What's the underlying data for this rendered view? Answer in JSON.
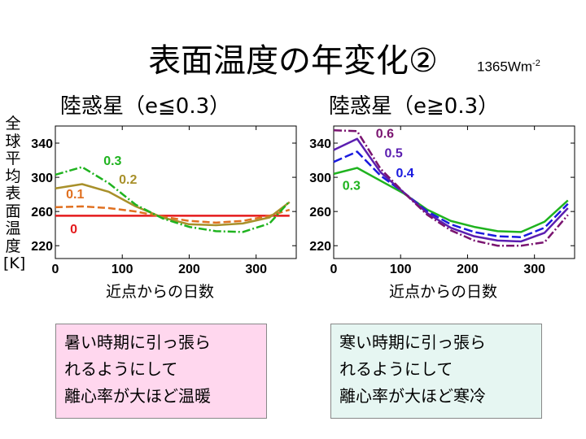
{
  "page": {
    "title": "表面温度の年変化②",
    "solar_constant": "1365Wm",
    "solar_constant_exp": "-2",
    "y_axis_label": "全球平均表面温度[K]"
  },
  "chart_data": [
    {
      "type": "line",
      "title": "陸惑星（e≦0.3）",
      "xlabel": "近点からの日数",
      "ylabel": "全球平均表面温度[K]",
      "xlim": [
        0,
        360
      ],
      "ylim": [
        205,
        360
      ],
      "xticks": [
        0,
        100,
        200,
        300
      ],
      "yticks": [
        220,
        260,
        300,
        340
      ],
      "series": [
        {
          "name": "0",
          "color": "#e41a1c",
          "dash": "",
          "x": [
            0,
            40,
            80,
            120,
            160,
            200,
            240,
            280,
            320,
            350
          ],
          "y": [
            255,
            255,
            255,
            255,
            255,
            255,
            255,
            255,
            255,
            255
          ]
        },
        {
          "name": "0.1",
          "color": "#e07020",
          "dash": "9,4",
          "x": [
            0,
            40,
            80,
            120,
            160,
            200,
            240,
            280,
            320,
            350
          ],
          "y": [
            265,
            266,
            264,
            260,
            254,
            249,
            247,
            249,
            255,
            262
          ]
        },
        {
          "name": "0.2",
          "color": "#a8902a",
          "dash": "",
          "x": [
            0,
            40,
            80,
            120,
            160,
            200,
            240,
            280,
            320,
            350
          ],
          "y": [
            287,
            292,
            283,
            266,
            253,
            245,
            244,
            246,
            253,
            271
          ]
        },
        {
          "name": "0.3",
          "color": "#1fb31f",
          "dash": "10,3,2,3",
          "x": [
            0,
            40,
            80,
            120,
            160,
            200,
            240,
            280,
            320,
            350
          ],
          "y": [
            303,
            312,
            293,
            268,
            252,
            242,
            237,
            236,
            246,
            272
          ]
        }
      ],
      "labels": [
        {
          "text": "0.3",
          "color": "#1fb31f",
          "x": 72,
          "y": 320
        },
        {
          "text": "0.2",
          "color": "#a8902a",
          "x": 95,
          "y": 298
        },
        {
          "text": "0.1",
          "color": "#e07020",
          "x": 16,
          "y": 281
        },
        {
          "text": "0",
          "color": "#e41a1c",
          "x": 22,
          "y": 240
        }
      ]
    },
    {
      "type": "line",
      "title": "陸惑星（e≧0.3）",
      "xlabel": "近点からの日数",
      "ylabel": "",
      "xlim": [
        0,
        360
      ],
      "ylim": [
        205,
        360
      ],
      "xticks": [
        0,
        100,
        200,
        300
      ],
      "yticks": [
        220,
        260,
        300,
        340
      ],
      "series": [
        {
          "name": "0.3",
          "color": "#1fb31f",
          "dash": "",
          "x": [
            0,
            35,
            70,
            105,
            140,
            175,
            210,
            245,
            280,
            315,
            350
          ],
          "y": [
            304,
            311,
            296,
            281,
            262,
            249,
            242,
            237,
            236,
            248,
            273
          ]
        },
        {
          "name": "0.4",
          "color": "#1a1adf",
          "dash": "11,4",
          "x": [
            0,
            35,
            70,
            105,
            140,
            175,
            210,
            245,
            280,
            315,
            350
          ],
          "y": [
            318,
            330,
            302,
            282,
            260,
            245,
            236,
            231,
            230,
            241,
            269
          ]
        },
        {
          "name": "0.5",
          "color": "#5b1eb0",
          "dash": "",
          "x": [
            0,
            35,
            70,
            105,
            140,
            175,
            210,
            245,
            280,
            315,
            350
          ],
          "y": [
            332,
            345,
            306,
            282,
            258,
            241,
            231,
            226,
            225,
            235,
            264
          ]
        },
        {
          "name": "0.6",
          "color": "#7a1470",
          "dash": "10,3,2,3",
          "x": [
            0,
            35,
            70,
            105,
            140,
            175,
            210,
            245,
            280,
            315,
            350
          ],
          "y": [
            355,
            354,
            310,
            282,
            256,
            238,
            226,
            220,
            220,
            224,
            256
          ]
        }
      ],
      "labels": [
        {
          "text": "0.6",
          "color": "#7a1470",
          "x": 63,
          "y": 352
        },
        {
          "text": "0.5",
          "color": "#5b1eb0",
          "x": 76,
          "y": 329
        },
        {
          "text": "0.4",
          "color": "#1a1adf",
          "x": 93,
          "y": 306
        },
        {
          "text": "0.3",
          "color": "#1fb31f",
          "x": 13,
          "y": 291
        }
      ]
    }
  ],
  "boxes": [
    {
      "lines": [
        "暑い時期に引っ張ら",
        "れるようにして",
        "離心率が大ほど温暖"
      ]
    },
    {
      "lines": [
        "寒い時期に引っ張ら",
        "れるようにして",
        "離心率が大ほど寒冷"
      ]
    }
  ]
}
